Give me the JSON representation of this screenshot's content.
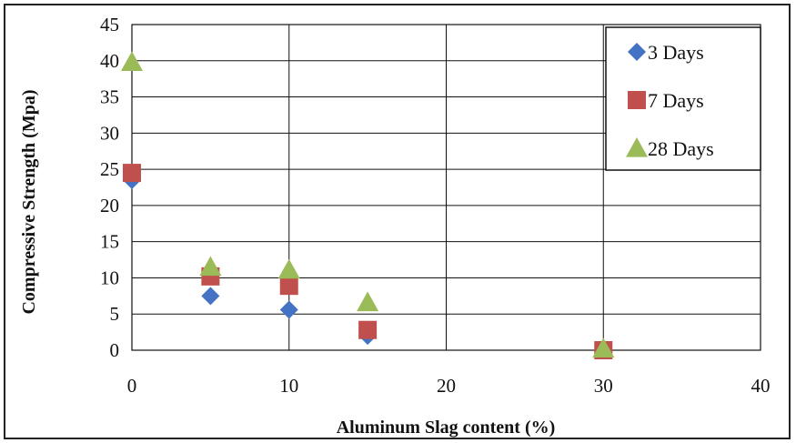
{
  "chart_data": {
    "type": "scatter",
    "xlabel": "Aluminum Slag content (%)",
    "ylabel": "Compressive Strength (Mpa)",
    "xlim": [
      0,
      40
    ],
    "ylim": [
      0,
      45
    ],
    "x_ticks": [
      0,
      10,
      20,
      30,
      40
    ],
    "y_ticks": [
      0,
      5,
      10,
      15,
      20,
      25,
      30,
      35,
      40,
      45
    ],
    "grid": true,
    "legend_position": "top-right",
    "series": [
      {
        "name": "3 Days",
        "marker": "diamond",
        "color": "#4472C4",
        "points": [
          {
            "x": 0,
            "y": 23.5
          },
          {
            "x": 5,
            "y": 7.5
          },
          {
            "x": 10,
            "y": 5.6
          },
          {
            "x": 15,
            "y": 2.0
          },
          {
            "x": 30,
            "y": 0
          }
        ]
      },
      {
        "name": "7 Days",
        "marker": "square",
        "color": "#C0504D",
        "points": [
          {
            "x": 0,
            "y": 24.5
          },
          {
            "x": 5,
            "y": 10.2
          },
          {
            "x": 10,
            "y": 8.9
          },
          {
            "x": 15,
            "y": 2.8
          },
          {
            "x": 30,
            "y": 0
          }
        ]
      },
      {
        "name": "28 Days",
        "marker": "triangle",
        "color": "#9BBB59",
        "points": [
          {
            "x": 0,
            "y": 39.8
          },
          {
            "x": 5,
            "y": 11.5
          },
          {
            "x": 10,
            "y": 11.1
          },
          {
            "x": 15,
            "y": 6.6
          },
          {
            "x": 30,
            "y": 0.2
          }
        ]
      }
    ]
  }
}
